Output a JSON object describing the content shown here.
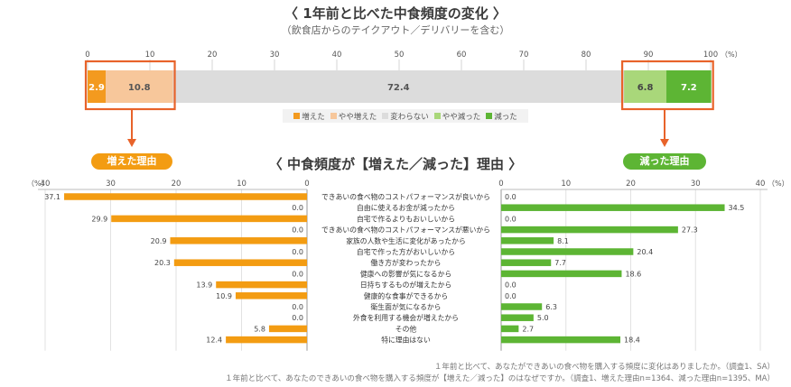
{
  "colors": {
    "increased": "#F39A1F",
    "slightly_increased": "#F7C79B",
    "unchanged": "#DCDCDC",
    "slightly_decreased": "#A9D77A",
    "decreased": "#5DB534",
    "highlight": "#E8632A",
    "orange_bar": "#F39C12",
    "green_bar": "#5DB534"
  },
  "header": {
    "title": "〈 1年前と比べた中食頻度の変化 〉",
    "subtitle": "（飲食店からのテイクアウト／デリバリーを含む）"
  },
  "reasons_header": {
    "title": "〈 中食頻度が【増えた／減った】理由 〉",
    "increased_pill": "増えた理由",
    "decreased_pill": "減った理由"
  },
  "notes": [
    "１年前と比べて、あなたができあいの食べ物を購入する頻度に変化はありましたか。（調査1、SA）",
    "１年前と比べて、あなたのできあいの食べ物を購入する頻度が【増えた／減った】のはなぜですか。（調査1、増えた理由n=1364、減った理由n=1395、MA）"
  ],
  "chart_data": [
    {
      "type": "bar",
      "orientation": "horizontal",
      "stacked": true,
      "title": "1年前と比べた中食頻度の変化",
      "subtitle": "（飲食店からのテイクアウト／デリバリーを含む）",
      "xlim": [
        0,
        100
      ],
      "ticks": [
        0,
        10,
        20,
        30,
        40,
        50,
        60,
        70,
        80,
        90,
        100
      ],
      "unit_label": "（%）",
      "legend_position": "bottom-center",
      "series": [
        {
          "name": "増えた",
          "value": 2.9,
          "label": "2.9"
        },
        {
          "name": "やや増えた",
          "value": 10.8,
          "label": "10.8"
        },
        {
          "name": "変わらない",
          "value": 72.4,
          "label": "72.4"
        },
        {
          "name": "やや減った",
          "value": 6.8,
          "label": "6.8"
        },
        {
          "name": "減った",
          "value": 7.2,
          "label": "7.2"
        }
      ]
    },
    {
      "type": "bar",
      "orientation": "horizontal",
      "title": "中食頻度が【増えた／減った】理由",
      "unit_label": "（%）",
      "increased": {
        "name": "増えた理由",
        "xlim": [
          0,
          40
        ],
        "ticks": [
          40,
          30,
          20,
          10,
          0
        ],
        "direction": "leftward"
      },
      "decreased": {
        "name": "減った理由",
        "xlim": [
          0,
          40
        ],
        "ticks": [
          0,
          10,
          20,
          30,
          40
        ],
        "direction": "rightward"
      },
      "categories": [
        "できあいの食べ物のコストパフォーマンスが良いから",
        "自由に使えるお金が減ったから",
        "自宅で作るよりもおいしいから",
        "できあいの食べ物のコストパフォーマンスが悪いから",
        "家族の人数や生活に変化があったから",
        "自宅で作った方がおいしいから",
        "働き方が変わったから",
        "健康への影響が気になるから",
        "日持ちするものが増えたから",
        "健康的な食事ができるから",
        "衛生面が気になるから",
        "外食を利用する機会が増えたから",
        "その他",
        "特に理由はない"
      ],
      "increased_values": [
        37.1,
        0.0,
        29.9,
        0.0,
        20.9,
        0.0,
        20.3,
        0.0,
        13.9,
        10.9,
        0.0,
        0.0,
        5.8,
        12.4
      ],
      "increased_labels": [
        "37.1",
        "0.0",
        "29.9",
        "0.0",
        "20.9",
        "0.0",
        "20.3",
        "0.0",
        "13.9",
        "10.9",
        "0.0",
        "0.0",
        "5.8",
        "12.4"
      ],
      "decreased_values": [
        0.0,
        34.5,
        0.0,
        27.3,
        8.1,
        20.4,
        7.7,
        18.6,
        0.0,
        0.0,
        6.3,
        5.0,
        2.7,
        18.4
      ],
      "decreased_labels": [
        "0.0",
        "34.5",
        "0.0",
        "27.3",
        "8.1",
        "20.4",
        "7.7",
        "18.6",
        "0.0",
        "0.0",
        "6.3",
        "5.0",
        "2.7",
        "18.4"
      ]
    }
  ]
}
